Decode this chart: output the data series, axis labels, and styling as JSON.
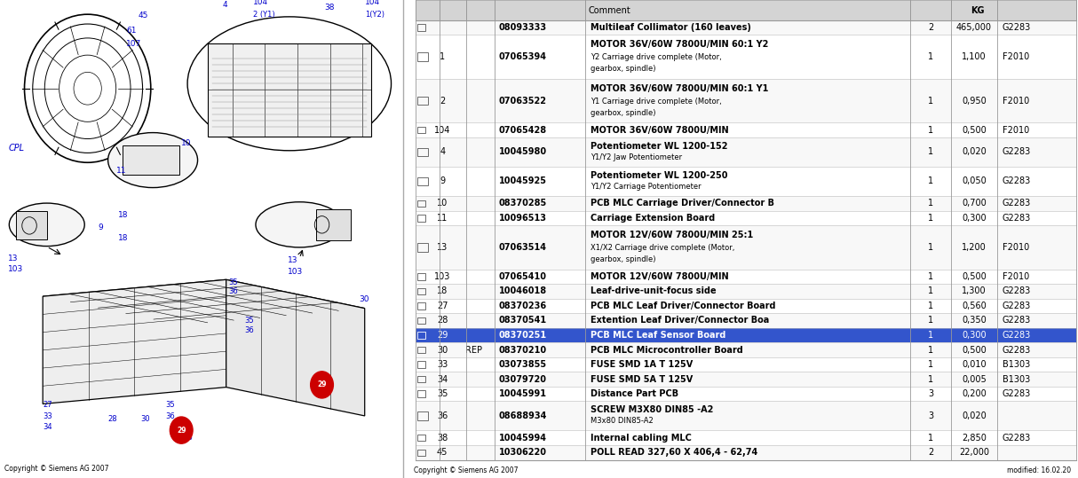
{
  "fig_width": 12.14,
  "fig_height": 5.39,
  "bg_color": "#ffffff",
  "highlight_row_bg": "#3355cc",
  "rows": [
    {
      "cpl": "",
      "rep": "",
      "pn": "08093333",
      "comment1": "Multileaf Collimator (160 leaves)",
      "comment2": "",
      "comment3": "",
      "qty": "2",
      "kg": "465,000",
      "src": "G2283",
      "highlight": false,
      "lines": 1
    },
    {
      "cpl": "1",
      "rep": "",
      "pn": "07065394",
      "comment1": "MOTOR 36V/60W 7800U/MIN 60:1 Y2",
      "comment2": "Y2 Carriage drive complete (Motor,",
      "comment3": "gearbox, spindle)",
      "qty": "1",
      "kg": "1,100",
      "src": "F2010",
      "highlight": false,
      "lines": 3
    },
    {
      "cpl": "2",
      "rep": "",
      "pn": "07063522",
      "comment1": "MOTOR 36V/60W 7800U/MIN 60:1 Y1",
      "comment2": "Y1 Carriage drive complete (Motor,",
      "comment3": "gearbox, spindle)",
      "qty": "1",
      "kg": "0,950",
      "src": "F2010",
      "highlight": false,
      "lines": 3
    },
    {
      "cpl": "104",
      "rep": "",
      "pn": "07065428",
      "comment1": "MOTOR 36V/60W 7800U/MIN",
      "comment2": "",
      "comment3": "",
      "qty": "1",
      "kg": "0,500",
      "src": "F2010",
      "highlight": false,
      "lines": 1
    },
    {
      "cpl": "4",
      "rep": "",
      "pn": "10045980",
      "comment1": "Potentiometer WL 1200-152",
      "comment2": "Y1/Y2 Jaw Potentiometer",
      "comment3": "",
      "qty": "1",
      "kg": "0,020",
      "src": "G2283",
      "highlight": false,
      "lines": 2
    },
    {
      "cpl": "9",
      "rep": "",
      "pn": "10045925",
      "comment1": "Potentiometer WL 1200-250",
      "comment2": "Y1/Y2 Carriage Potentiometer",
      "comment3": "",
      "qty": "1",
      "kg": "0,050",
      "src": "G2283",
      "highlight": false,
      "lines": 2
    },
    {
      "cpl": "10",
      "rep": "",
      "pn": "08370285",
      "comment1": "PCB MLC Carriage Driver/Connector B",
      "comment2": "",
      "comment3": "",
      "qty": "1",
      "kg": "0,700",
      "src": "G2283",
      "highlight": false,
      "lines": 1
    },
    {
      "cpl": "11",
      "rep": "",
      "pn": "10096513",
      "comment1": "Carriage Extension Board",
      "comment2": "",
      "comment3": "",
      "qty": "1",
      "kg": "0,300",
      "src": "G2283",
      "highlight": false,
      "lines": 1
    },
    {
      "cpl": "13",
      "rep": "",
      "pn": "07063514",
      "comment1": "MOTOR 12V/60W 7800U/MIN 25:1",
      "comment2": "X1/X2 Carriage drive complete (Motor,",
      "comment3": "gearbox, spindle)",
      "qty": "1",
      "kg": "1,200",
      "src": "F2010",
      "highlight": false,
      "lines": 3
    },
    {
      "cpl": "103",
      "rep": "",
      "pn": "07065410",
      "comment1": "MOTOR 12V/60W 7800U/MIN",
      "comment2": "",
      "comment3": "",
      "qty": "1",
      "kg": "0,500",
      "src": "F2010",
      "highlight": false,
      "lines": 1
    },
    {
      "cpl": "18",
      "rep": "",
      "pn": "10046018",
      "comment1": "Leaf-drive-unit-focus side",
      "comment2": "",
      "comment3": "",
      "qty": "1",
      "kg": "1,300",
      "src": "G2283",
      "highlight": false,
      "lines": 1
    },
    {
      "cpl": "27",
      "rep": "",
      "pn": "08370236",
      "comment1": "PCB MLC Leaf Driver/Connector Board",
      "comment2": "",
      "comment3": "",
      "qty": "1",
      "kg": "0,560",
      "src": "G2283",
      "highlight": false,
      "lines": 1
    },
    {
      "cpl": "28",
      "rep": "",
      "pn": "08370541",
      "comment1": "Extention Leaf Driver/Connector Boa",
      "comment2": "",
      "comment3": "",
      "qty": "1",
      "kg": "0,350",
      "src": "G2283",
      "highlight": false,
      "lines": 1
    },
    {
      "cpl": "29",
      "rep": "",
      "pn": "08370251",
      "comment1": "PCB MLC Leaf Sensor Board",
      "comment2": "",
      "comment3": "",
      "qty": "1",
      "kg": "0,300",
      "src": "G2283",
      "highlight": true,
      "lines": 1
    },
    {
      "cpl": "30",
      "rep": "REP",
      "pn": "08370210",
      "comment1": "PCB MLC Microcontroller Board",
      "comment2": "",
      "comment3": "",
      "qty": "1",
      "kg": "0,500",
      "src": "G2283",
      "highlight": false,
      "lines": 1
    },
    {
      "cpl": "33",
      "rep": "",
      "pn": "03073855",
      "comment1": "FUSE SMD 1A T 125V",
      "comment2": "",
      "comment3": "",
      "qty": "1",
      "kg": "0,010",
      "src": "B1303",
      "highlight": false,
      "lines": 1
    },
    {
      "cpl": "34",
      "rep": "",
      "pn": "03079720",
      "comment1": "FUSE SMD 5A T 125V",
      "comment2": "",
      "comment3": "",
      "qty": "1",
      "kg": "0,005",
      "src": "B1303",
      "highlight": false,
      "lines": 1
    },
    {
      "cpl": "35",
      "rep": "",
      "pn": "10045991",
      "comment1": "Distance Part PCB",
      "comment2": "",
      "comment3": "",
      "qty": "3",
      "kg": "0,200",
      "src": "G2283",
      "highlight": false,
      "lines": 1
    },
    {
      "cpl": "36",
      "rep": "",
      "pn": "08688934",
      "comment1": "SCREW M3X80 DIN85 -A2",
      "comment2": "M3x80 DIN85-A2",
      "comment3": "",
      "qty": "3",
      "kg": "0,020",
      "src": "",
      "highlight": false,
      "lines": 2
    },
    {
      "cpl": "38",
      "rep": "",
      "pn": "10045994",
      "comment1": "Internal cabling MLC",
      "comment2": "",
      "comment3": "",
      "qty": "1",
      "kg": "2,850",
      "src": "G2283",
      "highlight": false,
      "lines": 1
    },
    {
      "cpl": "45",
      "rep": "",
      "pn": "10306220",
      "comment1": "POLL READ 327,60 X 406,4 - 62,74",
      "comment2": "",
      "comment3": "",
      "qty": "2",
      "kg": "22,000",
      "src": "",
      "highlight": false,
      "lines": 1
    }
  ],
  "footer_left": "Copyright © Siemens AG 2007",
  "footer_right": "modified: 16.02.20"
}
